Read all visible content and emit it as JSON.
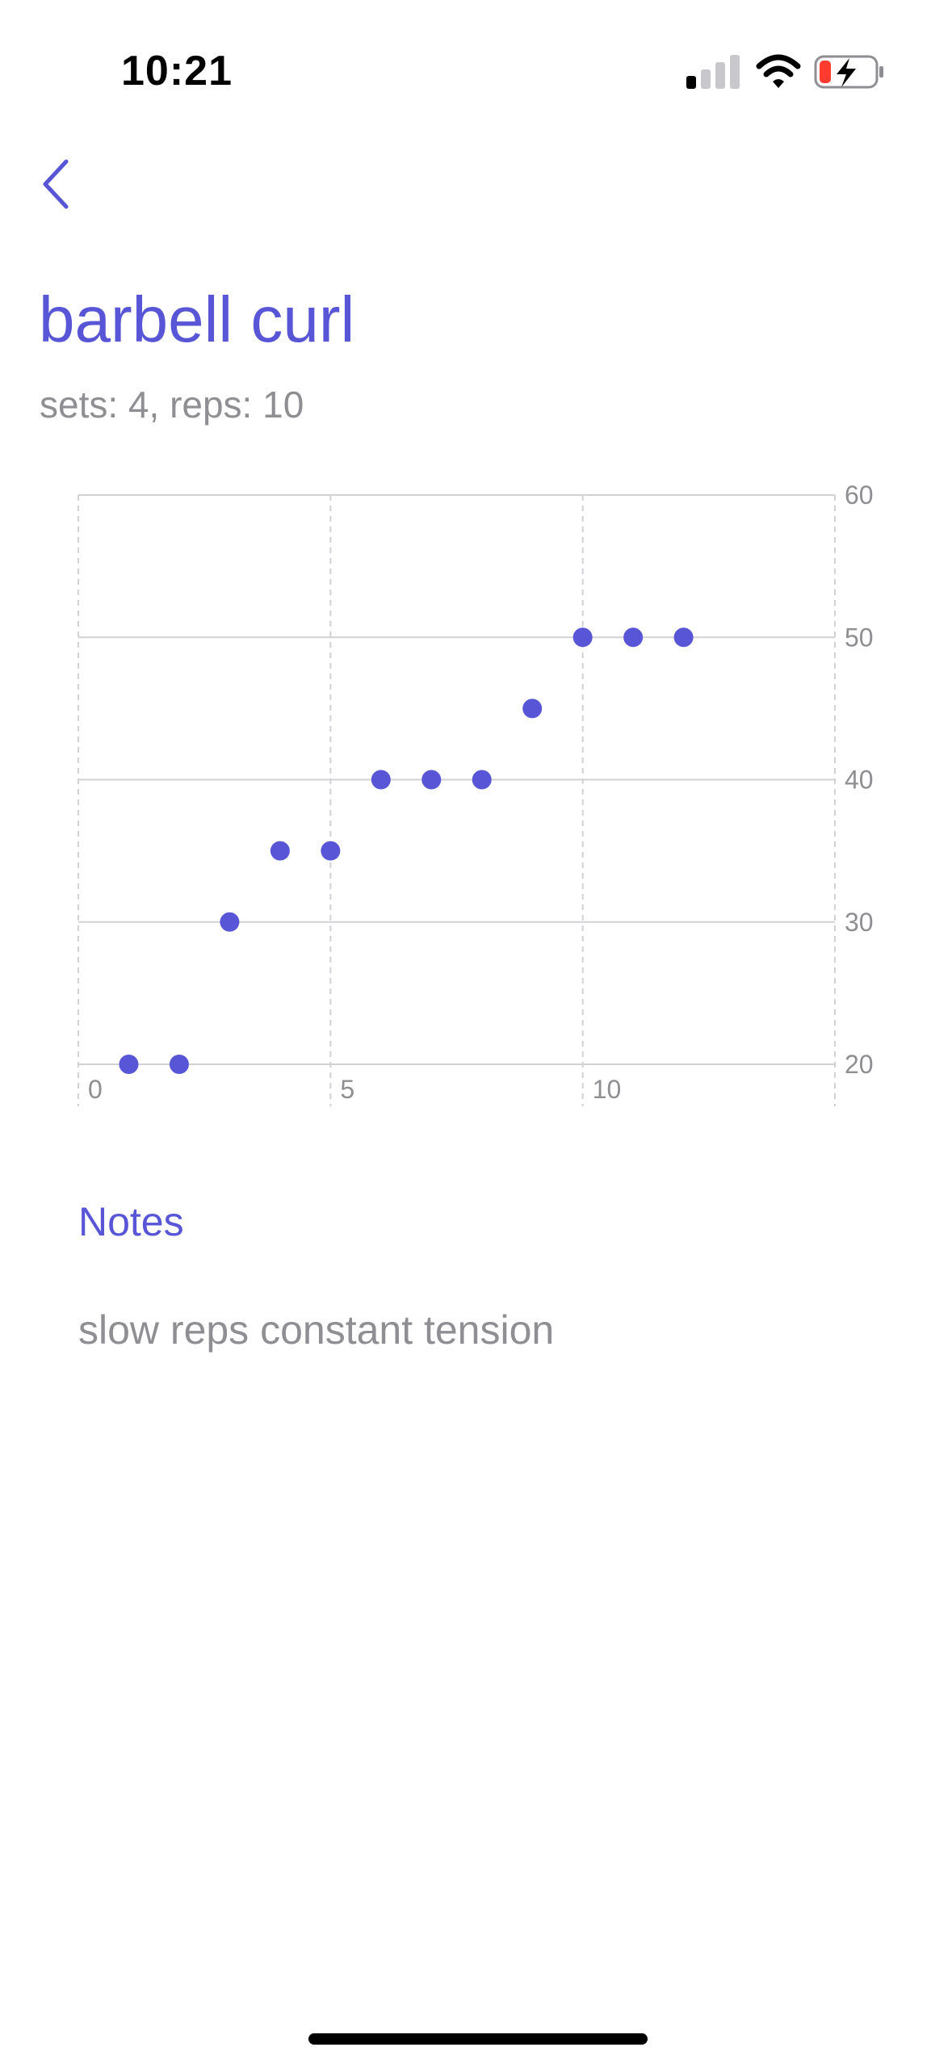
{
  "status_bar": {
    "time": "10:21",
    "icons": [
      "cellular-signal-icon",
      "wifi-icon",
      "battery-charging-icon"
    ]
  },
  "nav": {
    "back_icon": "chevron-left-icon"
  },
  "exercise": {
    "title": "barbell curl",
    "subtitle": "sets: 4, reps: 10"
  },
  "chart_data": {
    "type": "scatter",
    "x": [
      1,
      2,
      3,
      4,
      5,
      6,
      7,
      8,
      9,
      10,
      11,
      12
    ],
    "y": [
      20,
      20,
      30,
      35,
      35,
      40,
      40,
      40,
      45,
      50,
      50,
      50
    ],
    "xlim": [
      0,
      15
    ],
    "ylim": [
      20,
      60
    ],
    "x_ticks": [
      "0",
      "5",
      "10"
    ],
    "y_ticks": [
      "20",
      "30",
      "40",
      "50",
      "60"
    ],
    "y_axis_side": "right",
    "grid": true,
    "point_color": "#5856d6"
  },
  "notes": {
    "heading": "Notes",
    "text": "slow reps constant tension"
  },
  "colors": {
    "accent": "#5856d6",
    "secondary_text": "#8e8e93",
    "grid": "#d1d1d6"
  }
}
